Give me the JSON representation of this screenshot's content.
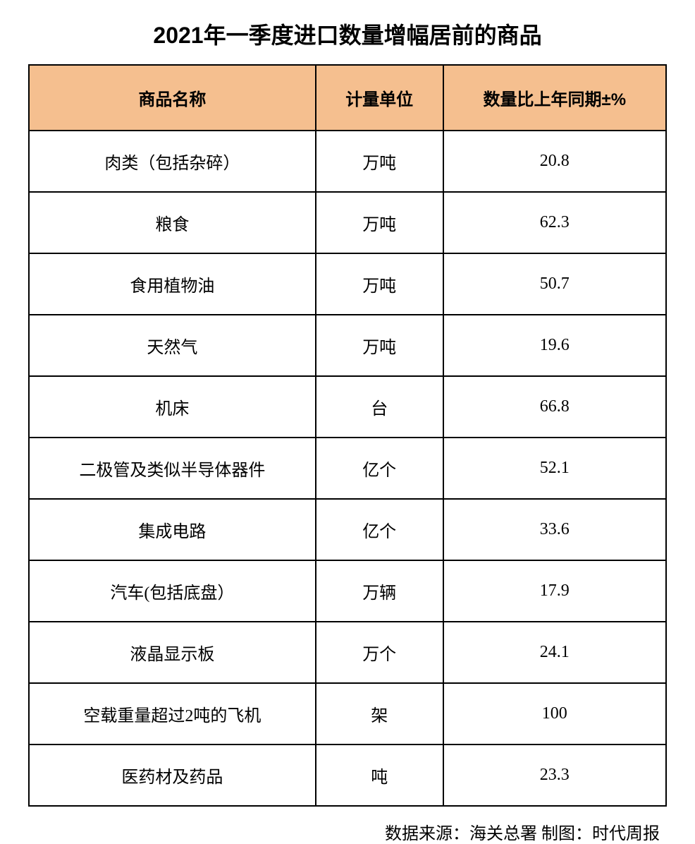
{
  "title": "2021年一季度进口数量增幅居前的商品",
  "table": {
    "header_bg_color": "#f5bf8f",
    "border_color": "#000000",
    "columns": [
      "商品名称",
      "计量单位",
      "数量比上年同期±%"
    ],
    "column_widths_pct": [
      45,
      20,
      35
    ],
    "rows": [
      {
        "name": "肉类（包括杂碎）",
        "unit": "万吨",
        "pct": "20.8"
      },
      {
        "name": "粮食",
        "unit": "万吨",
        "pct": "62.3"
      },
      {
        "name": "食用植物油",
        "unit": "万吨",
        "pct": "50.7"
      },
      {
        "name": "天然气",
        "unit": "万吨",
        "pct": "19.6"
      },
      {
        "name": "机床",
        "unit": "台",
        "pct": "66.8"
      },
      {
        "name": "二极管及类似半导体器件",
        "unit": "亿个",
        "pct": "52.1"
      },
      {
        "name": "集成电路",
        "unit": "亿个",
        "pct": "33.6"
      },
      {
        "name": "汽车(包括底盘）",
        "unit": "万辆",
        "pct": "17.9"
      },
      {
        "name": "液晶显示板",
        "unit": "万个",
        "pct": "24.1"
      },
      {
        "name": "空载重量超过2吨的飞机",
        "unit": "架",
        "pct": "100"
      },
      {
        "name": "医药材及药品",
        "unit": "吨",
        "pct": "23.3"
      }
    ]
  },
  "source": "数据来源：海关总署 制图：时代周报",
  "styling": {
    "background_color": "#ffffff",
    "title_fontsize": 32,
    "header_fontsize": 24,
    "cell_fontsize": 24,
    "source_fontsize": 24,
    "text_color": "#000000"
  }
}
